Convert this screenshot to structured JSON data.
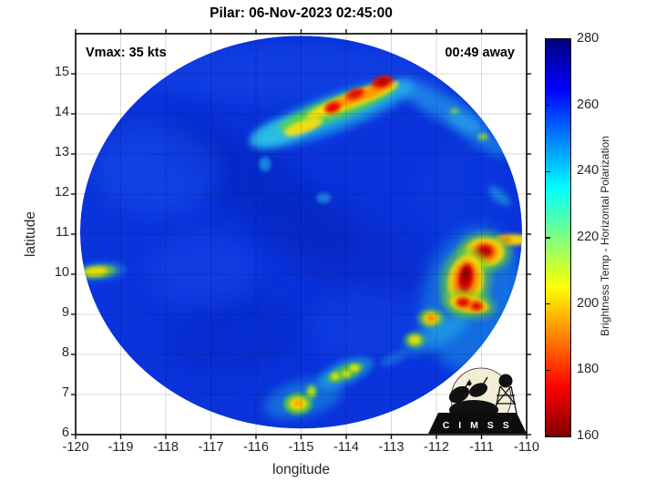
{
  "figure": {
    "title": "Pilar: 06-Nov-2023 02:45:00"
  },
  "annotations": {
    "vmax": "Vmax: 35 kts",
    "time_to_pass": "00:49 away"
  },
  "axes": {
    "xlabel": "longitude",
    "ylabel": "latitude",
    "x_range": [
      -120,
      -110
    ],
    "y_range": [
      6,
      16
    ],
    "x_ticks": [
      -120,
      -119,
      -118,
      -117,
      -116,
      -115,
      -114,
      -113,
      -112,
      -111,
      -110
    ],
    "y_ticks": [
      6,
      7,
      8,
      9,
      10,
      11,
      12,
      13,
      14,
      15
    ]
  },
  "colorbar": {
    "label": "Brightness Temp - Horizontal Polarization",
    "range": [
      160,
      280
    ],
    "ticks": [
      280,
      260,
      240,
      220,
      200,
      180,
      160
    ],
    "colormap": "jet reversed (280 K = dark blue, 160 K = dark red)"
  },
  "logo": {
    "text": "C I M S S"
  },
  "chart_data": {
    "type": "heatmap",
    "title": "Pilar: 06-Nov-2023 02:45:00",
    "storm_name": "Pilar",
    "valid_time": "06-Nov-2023 02:45:00",
    "vmax_kts": 35,
    "time_offset_label": "00:49 away",
    "xlabel": "longitude",
    "ylabel": "latitude",
    "xlim": [
      -120,
      -110
    ],
    "ylim": [
      6,
      16
    ],
    "x_ticks": [
      -120,
      -119,
      -118,
      -117,
      -116,
      -115,
      -114,
      -113,
      -112,
      -111,
      -110
    ],
    "y_ticks": [
      6,
      7,
      8,
      9,
      10,
      11,
      12,
      13,
      14,
      15
    ],
    "grid": true,
    "colorbar_label": "Brightness Temp - Horizontal Polarization",
    "colorbar_range": [
      160,
      280
    ],
    "swath": {
      "center_lon": -115.0,
      "center_lat": 11.05,
      "radius_deg": 4.9,
      "background_temp_K": 265
    },
    "features": [
      {
        "name": "northeast convective band",
        "lon_min": -116.3,
        "lon_max": -112.6,
        "lat_min": 13.1,
        "lat_max": 15.0,
        "min_temp_K": 168
      },
      {
        "name": "east-southeast convective cluster",
        "lon_min": -112.6,
        "lon_max": -110.2,
        "lat_min": 8.3,
        "lat_max": 11.0,
        "min_temp_K": 165
      },
      {
        "name": "southern convective line",
        "lon_min": -115.4,
        "lon_max": -112.7,
        "lat_min": 6.6,
        "lat_max": 8.1,
        "min_temp_K": 205
      },
      {
        "name": "western edge cell",
        "lon_min": -119.8,
        "lon_max": -119.1,
        "lat_min": 9.9,
        "lat_max": 10.3,
        "min_temp_K": 212
      }
    ],
    "blob_format": [
      "lon",
      "lat",
      "rx_deg",
      "ry_deg",
      "rotation_deg",
      "color",
      "opacity",
      "blur_id"
    ],
    "blobs": [
      [
        -115.9,
        12.1,
        2.6,
        0.9,
        35,
        "#0122b6",
        0.5,
        "b12"
      ],
      [
        -113.9,
        10.5,
        1.8,
        1.1,
        20,
        "#0726c0",
        0.4,
        "b12"
      ],
      [
        -116.4,
        8.5,
        1.6,
        0.9,
        -10,
        "#0624b8",
        0.35,
        "b12"
      ],
      [
        -118.2,
        12.6,
        1.4,
        1.1,
        0,
        "#1e52f0",
        0.45,
        "b12"
      ],
      [
        -117.2,
        10.1,
        1.2,
        0.9,
        0,
        "#1b4cec",
        0.4,
        "b12"
      ],
      [
        -113.5,
        8.7,
        1.4,
        0.9,
        0,
        "#1748e8",
        0.35,
        "b12"
      ],
      [
        -111.5,
        12.1,
        1.0,
        1.2,
        0,
        "#1040e0",
        0.35,
        "b12"
      ],
      [
        -115.0,
        15.0,
        3.6,
        0.7,
        0,
        "#1546e8",
        0.5,
        "b8"
      ],
      [
        -115.8,
        12.75,
        0.13,
        0.18,
        0,
        "#28b0f0",
        0.65,
        "b2"
      ],
      [
        -114.5,
        11.9,
        0.16,
        0.13,
        0,
        "#30b8f0",
        0.55,
        "b2"
      ],
      [
        -114.3,
        14.0,
        1.9,
        0.42,
        -20,
        "#25c8ee",
        0.75,
        "b6"
      ],
      [
        -115.45,
        13.55,
        0.72,
        0.3,
        -18,
        "#30c8e8",
        0.7,
        "b4"
      ],
      [
        -114.2,
        14.15,
        1.4,
        0.27,
        -20,
        "#58d838",
        0.85,
        "b4"
      ],
      [
        -113.85,
        14.35,
        1.1,
        0.18,
        -20,
        "#ffe008",
        0.95,
        "b2"
      ],
      [
        -114.95,
        13.68,
        0.45,
        0.16,
        -20,
        "#ffe008",
        0.9,
        "b2"
      ],
      [
        -113.7,
        14.45,
        0.8,
        0.14,
        -20,
        "#ff8c00",
        0.9,
        "b2"
      ],
      [
        -114.3,
        14.16,
        0.18,
        0.13,
        -20,
        "#e81000",
        1,
        "b2"
      ],
      [
        -113.8,
        14.5,
        0.2,
        0.12,
        -20,
        "#e81000",
        1,
        "b2"
      ],
      [
        -113.2,
        14.8,
        0.24,
        0.14,
        -15,
        "#e00c00",
        1,
        "b2"
      ],
      [
        -113.2,
        14.8,
        0.11,
        0.07,
        -15,
        "#b00000",
        1,
        "b2"
      ],
      [
        -111.9,
        14.2,
        1.1,
        0.32,
        28,
        "#2ec4ee",
        0.5,
        "b6"
      ],
      [
        -111.1,
        13.5,
        0.8,
        0.25,
        35,
        "#2ec4ee",
        0.45,
        "b6"
      ],
      [
        -110.97,
        13.43,
        0.12,
        0.09,
        0,
        "#9adc30",
        0.8,
        "b2"
      ],
      [
        -111.6,
        14.07,
        0.1,
        0.08,
        0,
        "#9adc30",
        0.7,
        "b2"
      ],
      [
        -110.6,
        11.95,
        0.3,
        0.15,
        40,
        "#30c0e8",
        0.5,
        "b4"
      ],
      [
        -111.2,
        9.4,
        1.1,
        1.8,
        12,
        "#22b4e6",
        0.45,
        "b8"
      ],
      [
        -112.0,
        8.5,
        0.8,
        0.28,
        -28,
        "#28b8e8",
        0.5,
        "b6"
      ],
      [
        -110.3,
        10.86,
        0.4,
        0.14,
        0,
        "#ffd800",
        0.95,
        "b2"
      ],
      [
        -110.5,
        10.84,
        0.16,
        0.11,
        0,
        "#ff8000",
        0.9,
        "b2"
      ],
      [
        -110.93,
        10.55,
        0.6,
        0.5,
        0,
        "#66d030",
        0.6,
        "b4"
      ],
      [
        -110.93,
        10.55,
        0.44,
        0.36,
        0,
        "#ffe000",
        0.9,
        "b2"
      ],
      [
        -110.93,
        10.55,
        0.3,
        0.26,
        0,
        "#ff8800",
        0.95,
        "b2"
      ],
      [
        -110.93,
        10.57,
        0.19,
        0.16,
        0,
        "#de0800",
        1,
        "b2"
      ],
      [
        -110.93,
        10.58,
        0.1,
        0.08,
        0,
        "#a80000",
        1,
        "b2"
      ],
      [
        -111.35,
        9.82,
        0.57,
        0.86,
        8,
        "#66d030",
        0.55,
        "b4"
      ],
      [
        -111.35,
        9.82,
        0.4,
        0.66,
        8,
        "#ffe000",
        0.85,
        "b2"
      ],
      [
        -111.35,
        9.85,
        0.28,
        0.5,
        8,
        "#ff8800",
        0.95,
        "b2"
      ],
      [
        -111.35,
        9.9,
        0.16,
        0.36,
        8,
        "#dc0600",
        1,
        "b2"
      ],
      [
        -111.35,
        9.98,
        0.09,
        0.2,
        8,
        "#980000",
        1,
        "b2"
      ],
      [
        -111.27,
        9.25,
        0.6,
        0.35,
        10,
        "#66d030",
        0.55,
        "b4"
      ],
      [
        -111.27,
        9.25,
        0.44,
        0.2,
        10,
        "#ffd800",
        0.9,
        "b2"
      ],
      [
        -111.27,
        9.25,
        0.33,
        0.14,
        10,
        "#ff8800",
        0.9,
        "b2"
      ],
      [
        -111.41,
        9.3,
        0.14,
        0.11,
        0,
        "#de0800",
        1,
        "b2"
      ],
      [
        -111.11,
        9.2,
        0.12,
        0.1,
        0,
        "#de0800",
        1,
        "b2"
      ],
      [
        -112.12,
        8.9,
        0.3,
        0.24,
        0,
        "#66d030",
        0.6,
        "b2"
      ],
      [
        -112.12,
        8.9,
        0.18,
        0.15,
        0,
        "#ffe000",
        0.9,
        "b2"
      ],
      [
        -112.12,
        8.9,
        0.1,
        0.08,
        0,
        "#ff7800",
        0.9,
        "b2"
      ],
      [
        -112.48,
        8.36,
        0.24,
        0.2,
        0,
        "#5cc832",
        0.6,
        "b2"
      ],
      [
        -112.48,
        8.36,
        0.14,
        0.12,
        0,
        "#f5e400",
        0.9,
        "b2"
      ],
      [
        -114.95,
        6.9,
        0.9,
        0.45,
        -15,
        "#22b0e0",
        0.45,
        "b6"
      ],
      [
        -115.07,
        6.77,
        0.32,
        0.27,
        0,
        "#5ccc34",
        0.85,
        "b2"
      ],
      [
        -115.07,
        6.77,
        0.2,
        0.16,
        0,
        "#ffe000",
        0.9,
        "b2"
      ],
      [
        -115.07,
        6.78,
        0.1,
        0.08,
        0,
        "#ffa000",
        0.9,
        "b2"
      ],
      [
        -114.77,
        7.07,
        0.12,
        0.18,
        0,
        "#6cd438",
        0.85,
        "b2"
      ],
      [
        -114.77,
        7.07,
        0.06,
        0.09,
        0,
        "#e8f000",
        0.8,
        "b2"
      ],
      [
        -114.02,
        7.55,
        0.66,
        0.3,
        -22,
        "#28b8e8",
        0.5,
        "b4"
      ],
      [
        -114.02,
        7.55,
        0.44,
        0.18,
        -22,
        "#50c838",
        0.8,
        "b2"
      ],
      [
        -114.24,
        7.45,
        0.1,
        0.08,
        0,
        "#f0e800",
        0.95,
        "b2"
      ],
      [
        -114.0,
        7.52,
        0.1,
        0.08,
        0,
        "#f0e800",
        0.95,
        "b2"
      ],
      [
        -113.82,
        7.66,
        0.11,
        0.09,
        0,
        "#f0e800",
        0.95,
        "b2"
      ],
      [
        -112.95,
        7.9,
        0.32,
        0.12,
        -25,
        "#30b0e0",
        0.4,
        "b4"
      ],
      [
        -119.45,
        10.07,
        0.57,
        0.22,
        -5,
        "#28a8e0",
        0.5,
        "b4"
      ],
      [
        -119.5,
        10.07,
        0.4,
        0.16,
        -5,
        "#70c830",
        0.8,
        "b2"
      ],
      [
        -119.55,
        10.07,
        0.26,
        0.11,
        -5,
        "#f0e000",
        0.95,
        "b2"
      ]
    ]
  }
}
